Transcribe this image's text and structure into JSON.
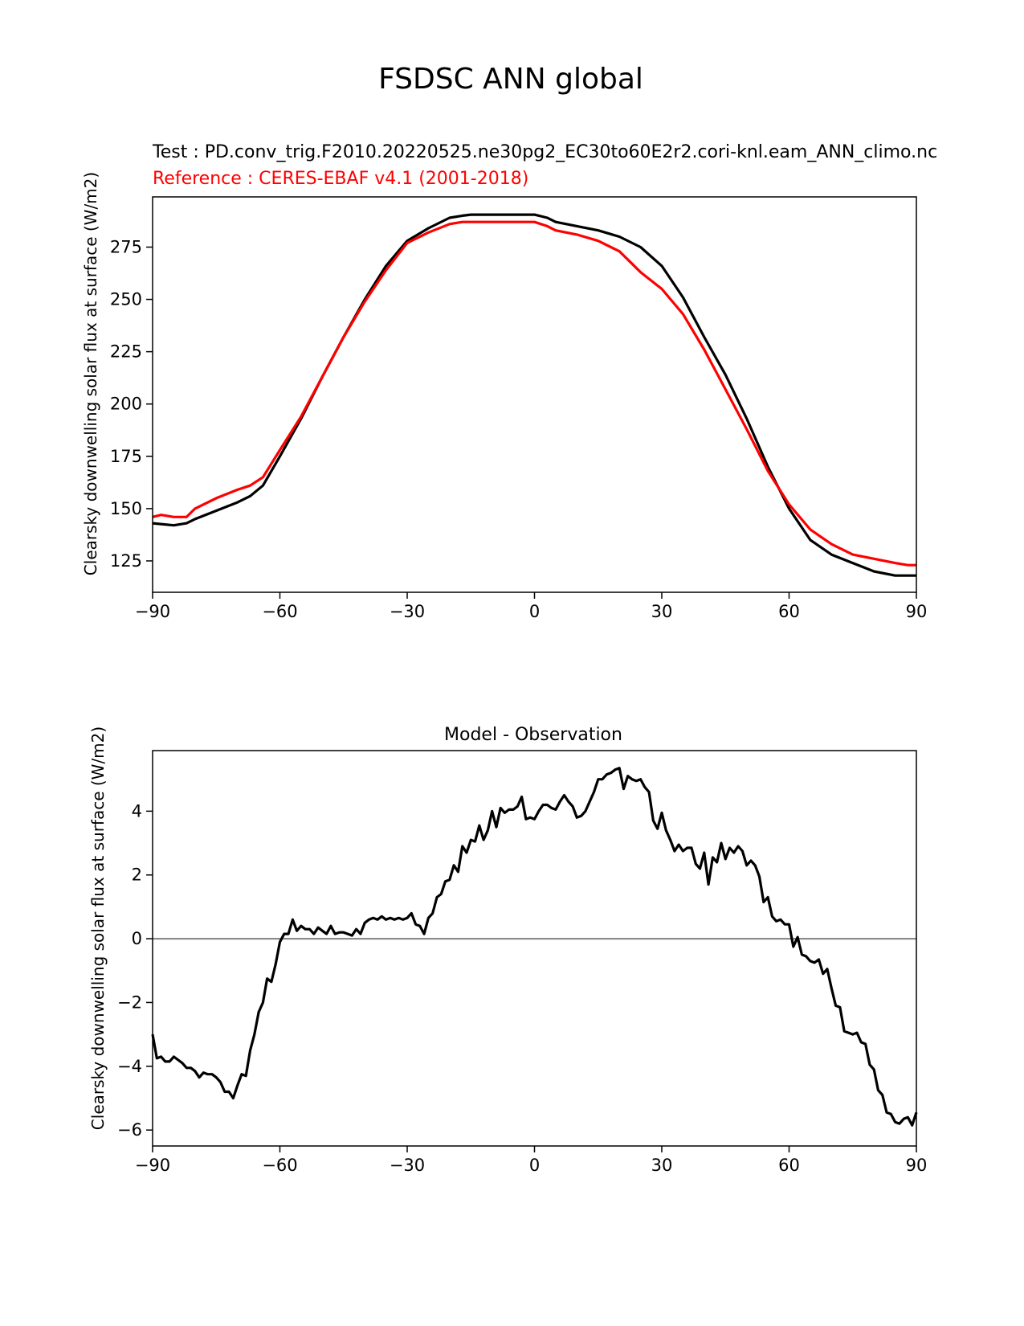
{
  "figure_title": "FSDSC ANN global",
  "chart_data": [
    {
      "type": "line",
      "title_test": "Test : PD.conv_trig.F2010.20220525.ne30pg2_EC30to60E2r2.cori-knl.eam_ANN_climo.nc",
      "title_reference": "Reference : CERES-EBAF v4.1 (2001-2018)",
      "xlabel": "",
      "ylabel": "Clearsky downwelling solar flux at surface (W/m2)",
      "xlim": [
        -90,
        90
      ],
      "ylim": [
        110,
        299
      ],
      "xticks": [
        -90,
        -60,
        -30,
        0,
        30,
        60,
        90
      ],
      "xtick_labels": [
        "−90",
        "−60",
        "−30",
        "0",
        "30",
        "60",
        "90"
      ],
      "yticks": [
        125,
        150,
        175,
        200,
        225,
        250,
        275
      ],
      "ytick_labels": [
        "125",
        "150",
        "175",
        "200",
        "225",
        "250",
        "275"
      ],
      "grid": false,
      "colors": {
        "test": "#000000",
        "reference": "#ff0000"
      },
      "series": [
        {
          "color": "#000000",
          "x": [
            -90,
            -85,
            -82,
            -80,
            -75,
            -70,
            -67,
            -64,
            -60,
            -55,
            -50,
            -45,
            -40,
            -35,
            -30,
            -25,
            -20,
            -17,
            -15,
            -12,
            -10,
            -5,
            0,
            3,
            5,
            10,
            15,
            20,
            25,
            30,
            35,
            40,
            45,
            50,
            55,
            60,
            65,
            70,
            75,
            80,
            85,
            88,
            90
          ],
          "y": [
            143,
            142,
            143,
            145,
            149,
            153,
            156,
            161,
            175,
            193,
            213,
            232,
            250,
            266,
            278,
            284,
            289,
            290,
            290.5,
            290.5,
            290.5,
            290.5,
            290.5,
            289,
            287,
            285,
            283,
            280,
            275,
            266,
            251,
            232,
            214,
            193,
            170,
            150,
            135,
            128,
            124,
            120,
            118,
            118,
            118
          ]
        },
        {
          "color": "#ff0000",
          "x": [
            -90,
            -88,
            -85,
            -82,
            -80,
            -75,
            -70,
            -67,
            -64,
            -60,
            -55,
            -50,
            -45,
            -40,
            -35,
            -30,
            -25,
            -20,
            -17,
            -15,
            -12,
            -10,
            -5,
            0,
            3,
            5,
            10,
            15,
            20,
            25,
            30,
            35,
            40,
            45,
            50,
            55,
            60,
            65,
            70,
            75,
            80,
            85,
            88,
            90
          ],
          "y": [
            146,
            147,
            146,
            146,
            150,
            155,
            159,
            161,
            165,
            178,
            194,
            213,
            232,
            249,
            264,
            277,
            282,
            286,
            287,
            287,
            287,
            287,
            287,
            287,
            285,
            283,
            281,
            278,
            273,
            263,
            255,
            243,
            226,
            207,
            188,
            168,
            152,
            140,
            133,
            128,
            126,
            124,
            123,
            123
          ]
        }
      ]
    },
    {
      "type": "line",
      "title": "Model - Observation",
      "xlabel": "",
      "ylabel": "Clearsky downwelling solar flux at surface (W/m2)",
      "xlim": [
        -90,
        90
      ],
      "ylim": [
        -6.5,
        5.9
      ],
      "xticks": [
        -90,
        -60,
        -30,
        0,
        30,
        60,
        90
      ],
      "xtick_labels": [
        "−90",
        "−60",
        "−30",
        "0",
        "30",
        "60",
        "90"
      ],
      "yticks": [
        -6,
        -4,
        -2,
        0,
        2,
        4
      ],
      "ytick_labels": [
        "−6",
        "−4",
        "−2",
        "0",
        "2",
        "4"
      ],
      "grid": false,
      "zero_line_color": "#808080",
      "series": [
        {
          "color": "#000000",
          "x": [
            -90,
            -89,
            -88,
            -87,
            -86,
            -85,
            -84,
            -83,
            -82,
            -81,
            -80,
            -79,
            -78,
            -77,
            -76,
            -75,
            -74,
            -73,
            -72,
            -71,
            -70,
            -69,
            -68,
            -67,
            -66,
            -65,
            -64,
            -63,
            -62,
            -61,
            -60,
            -59,
            -58,
            -57,
            -56,
            -55,
            -54,
            -53,
            -52,
            -51,
            -50,
            -49,
            -48,
            -47,
            -46,
            -45,
            -44,
            -43,
            -42,
            -41,
            -40,
            -39,
            -38,
            -37,
            -36,
            -35,
            -34,
            -33,
            -32,
            -31,
            -30,
            -29,
            -28,
            -27,
            -26,
            -25,
            -24,
            -23,
            -22,
            -21,
            -20,
            -19,
            -18,
            -17,
            -16,
            -15,
            -14,
            -13,
            -12,
            -11,
            -10,
            -9,
            -8,
            -7,
            -6,
            -5,
            -4,
            -3,
            -2,
            -1,
            0,
            1,
            2,
            3,
            4,
            5,
            6,
            7,
            8,
            9,
            10,
            11,
            12,
            13,
            14,
            15,
            16,
            17,
            18,
            19,
            20,
            21,
            22,
            23,
            24,
            25,
            26,
            27,
            28,
            29,
            30,
            31,
            32,
            33,
            34,
            35,
            36,
            37,
            38,
            39,
            40,
            41,
            42,
            43,
            44,
            45,
            46,
            47,
            48,
            49,
            50,
            51,
            52,
            53,
            54,
            55,
            56,
            57,
            58,
            59,
            60,
            61,
            62,
            63,
            64,
            65,
            66,
            67,
            68,
            69,
            70,
            71,
            72,
            73,
            74,
            75,
            76,
            77,
            78,
            79,
            80,
            81,
            82,
            83,
            84,
            85,
            86,
            87,
            88,
            89,
            90
          ],
          "y": [
            -3.0,
            -3.75,
            -3.7,
            -3.85,
            -3.85,
            -3.7,
            -3.8,
            -3.9,
            -4.05,
            -4.05,
            -4.15,
            -4.35,
            -4.2,
            -4.25,
            -4.25,
            -4.35,
            -4.5,
            -4.8,
            -4.8,
            -5.0,
            -4.6,
            -4.25,
            -4.3,
            -3.5,
            -3.0,
            -2.3,
            -2.0,
            -1.25,
            -1.35,
            -0.8,
            -0.1,
            0.15,
            0.15,
            0.6,
            0.25,
            0.4,
            0.3,
            0.3,
            0.15,
            0.35,
            0.25,
            0.15,
            0.4,
            0.15,
            0.2,
            0.2,
            0.15,
            0.1,
            0.3,
            0.15,
            0.5,
            0.6,
            0.65,
            0.6,
            0.7,
            0.6,
            0.65,
            0.6,
            0.65,
            0.6,
            0.65,
            0.8,
            0.45,
            0.4,
            0.15,
            0.65,
            0.8,
            1.3,
            1.4,
            1.8,
            1.85,
            2.3,
            2.1,
            2.9,
            2.7,
            3.1,
            3.05,
            3.55,
            3.1,
            3.4,
            4.0,
            3.5,
            4.1,
            3.95,
            4.05,
            4.05,
            4.15,
            4.45,
            3.75,
            3.8,
            3.75,
            4.0,
            4.2,
            4.2,
            4.1,
            4.05,
            4.3,
            4.5,
            4.3,
            4.15,
            3.8,
            3.85,
            4.0,
            4.3,
            4.6,
            5.0,
            5.0,
            5.15,
            5.2,
            5.3,
            5.35,
            4.7,
            5.1,
            5.0,
            4.95,
            5.0,
            4.75,
            4.6,
            3.7,
            3.45,
            3.95,
            3.4,
            3.1,
            2.75,
            2.95,
            2.75,
            2.85,
            2.85,
            2.35,
            2.2,
            2.7,
            1.7,
            2.55,
            2.4,
            3.0,
            2.5,
            2.85,
            2.7,
            2.9,
            2.75,
            2.3,
            2.45,
            2.3,
            1.95,
            1.15,
            1.3,
            0.7,
            0.55,
            0.6,
            0.45,
            0.45,
            -0.25,
            0.05,
            -0.5,
            -0.55,
            -0.7,
            -0.75,
            -0.65,
            -1.1,
            -0.95,
            -1.55,
            -2.1,
            -2.15,
            -2.9,
            -2.95,
            -3.0,
            -2.95,
            -3.25,
            -3.3,
            -3.95,
            -4.1,
            -4.75,
            -4.9,
            -5.45,
            -5.5,
            -5.75,
            -5.8,
            -5.65,
            -5.6,
            -5.85,
            -5.45
          ]
        }
      ]
    }
  ]
}
